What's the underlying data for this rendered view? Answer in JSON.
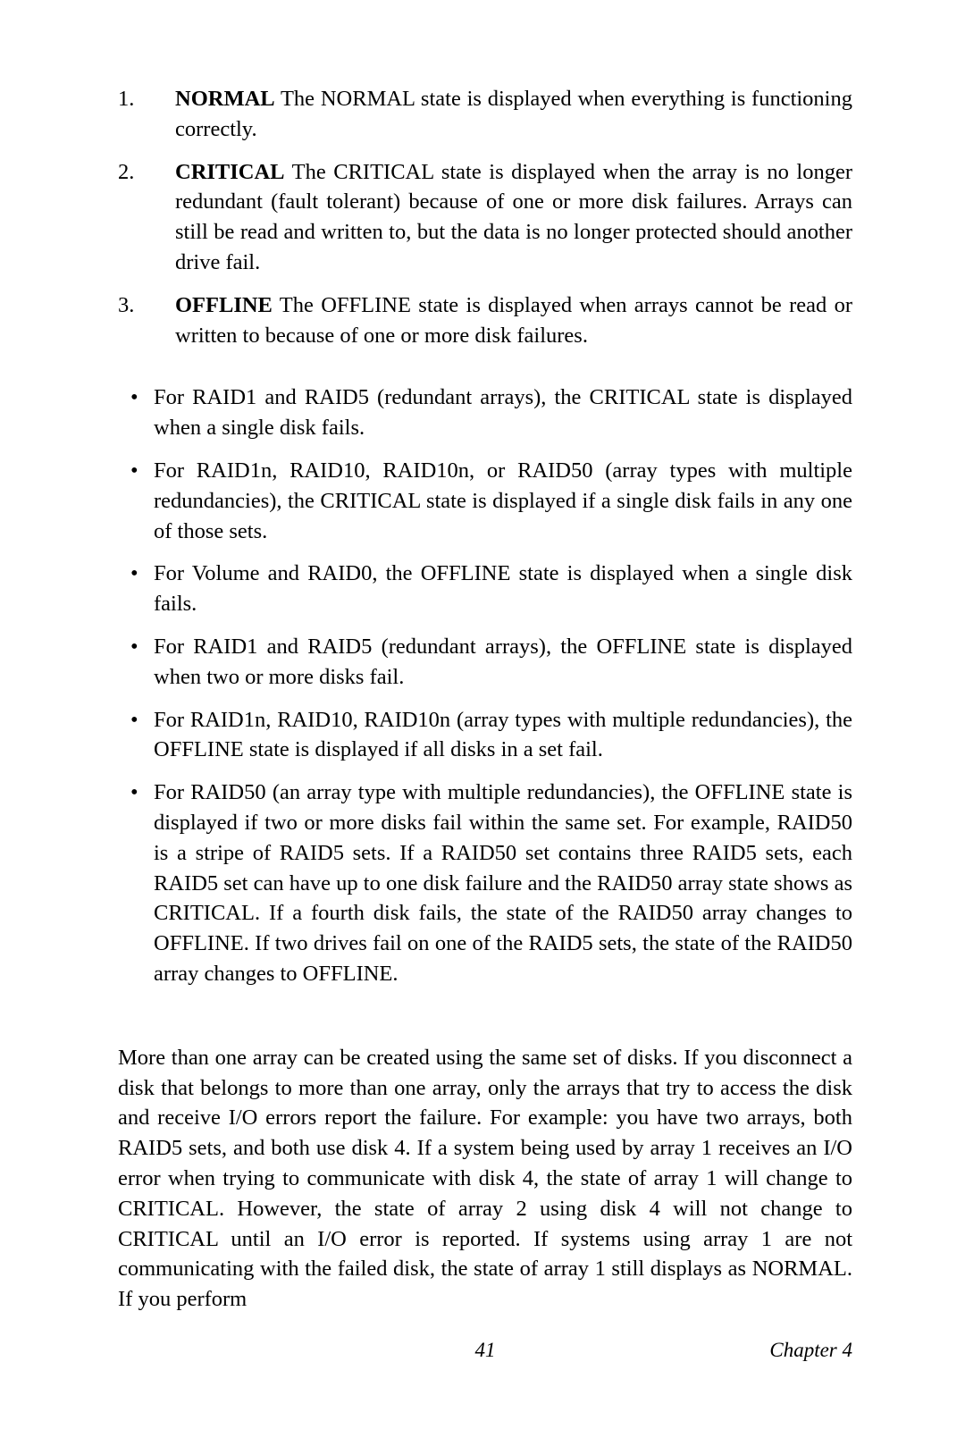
{
  "ordered": [
    {
      "num": "1.",
      "lead": "NORMAL",
      "text": " The NORMAL state is displayed when everything is functioning correctly."
    },
    {
      "num": "2.",
      "lead": "CRITICAL",
      "text": " The CRITICAL state is displayed when the array is no longer redundant (fault tolerant) because of one or more disk failures. Arrays can still be read and written to, but the data is no longer protected should another drive fail."
    },
    {
      "num": "3.",
      "lead": "OFFLINE",
      "text": " The OFFLINE state is displayed when arrays cannot be read or written to because of one or more disk failures."
    }
  ],
  "bullets": [
    "For RAID1 and RAID5 (redundant arrays), the CRITICAL state is displayed when a single disk fails.",
    "For RAID1n, RAID10, RAID10n, or RAID50 (array types with multiple redundancies), the CRITICAL state is displayed if a single disk fails in any one of those sets.",
    "For Volume and RAID0, the OFFLINE state is displayed when a single disk fails.",
    "For RAID1 and RAID5 (redundant arrays), the OFFLINE state is displayed when two or more disks fail.",
    "For RAID1n, RAID10, RAID10n (array types with multiple redundancies), the OFFLINE state is displayed if all disks in a set fail.",
    "For RAID50 (an array type with multiple redundancies), the OFFLINE state is displayed if two or more disks fail within the same set. For example, RAID50 is a stripe of RAID5 sets. If a RAID50 set contains three RAID5 sets, each RAID5 set can have up to one disk failure and the RAID50 array state shows as CRITICAL. If a fourth disk fails, the state of the RAID50 array changes to OFFLINE. If two drives fail on one of the RAID5 sets, the state of the RAID50 array changes to OFFLINE."
  ],
  "paragraph": "More than one array can be created using the same set of disks. If you disconnect a disk that belongs to more than one array, only the arrays that try to access the disk and receive I/O errors report the failure. For example: you have two arrays, both RAID5 sets, and both use disk 4. If a system being used by array 1 receives an I/O error when trying to communicate with disk 4, the state of array 1 will change to CRITICAL. However, the state of array 2 using disk 4 will not change to CRITICAL until an I/O error is reported. If systems using array 1 are not communicating with the failed disk, the state of array 1 still displays as NORMAL. If you perform",
  "footer": {
    "page": "41",
    "chapter": "Chapter 4"
  },
  "style": {
    "background_color": "#ffffff",
    "text_color": "#000000",
    "body_fontsize": 24.5,
    "footer_fontsize": 23,
    "line_height": 1.38
  }
}
